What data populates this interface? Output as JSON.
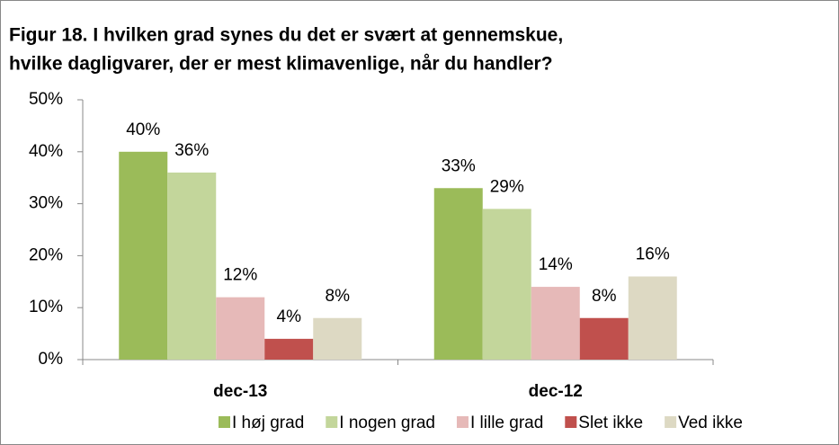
{
  "chart_data": {
    "type": "bar",
    "title": [
      "Figur 18. I hvilken grad synes du det er svært at gennemskue,",
      "hvilke dagligvarer, der er mest klimavenlige, når du handler?"
    ],
    "categories": [
      "dec-13",
      "dec-12"
    ],
    "series": [
      {
        "name": "I høj grad",
        "color": "#9bbb59",
        "values": [
          40,
          33
        ],
        "value_labels": [
          "40%",
          "33%"
        ]
      },
      {
        "name": "I nogen grad",
        "color": "#c3d69b",
        "values": [
          36,
          29
        ],
        "value_labels": [
          "36%",
          "29%"
        ]
      },
      {
        "name": "I lille grad",
        "color": "#e6b9b8",
        "values": [
          12,
          14
        ],
        "value_labels": [
          "12%",
          "14%"
        ]
      },
      {
        "name": "Slet ikke",
        "color": "#c0504d",
        "values": [
          4,
          8
        ],
        "value_labels": [
          "4%",
          "8%"
        ]
      },
      {
        "name": "Ved ikke",
        "color": "#ddd9c3",
        "values": [
          8,
          16
        ],
        "value_labels": [
          "8%",
          "16%"
        ]
      }
    ],
    "ylim": [
      0,
      50
    ],
    "yticks": [
      {
        "value": 0,
        "label": "0%"
      },
      {
        "value": 10,
        "label": "10%"
      },
      {
        "value": 20,
        "label": "20%"
      },
      {
        "value": 30,
        "label": "30%"
      },
      {
        "value": 40,
        "label": "40%"
      },
      {
        "value": 50,
        "label": "50%"
      }
    ],
    "legend": "bottom"
  }
}
